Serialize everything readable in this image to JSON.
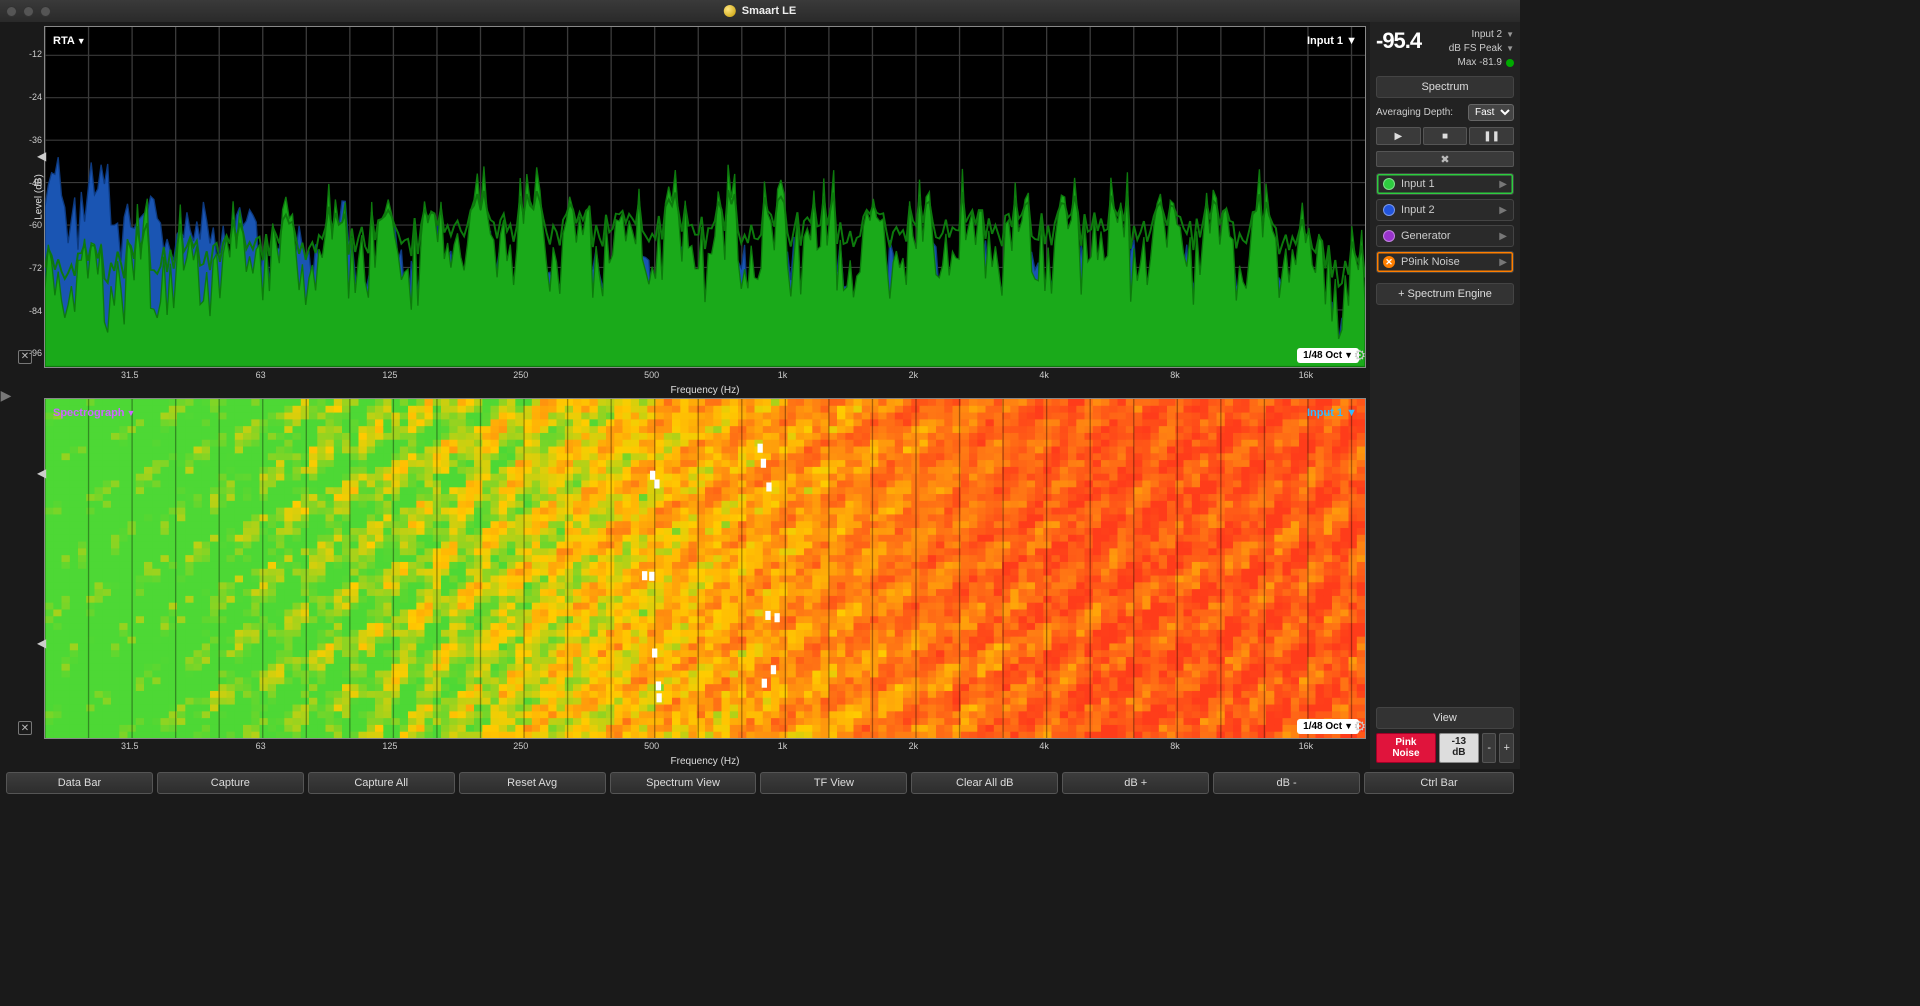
{
  "app": {
    "title": "Smaart LE"
  },
  "meter": {
    "value": "-95.4",
    "input_label": "Input 2",
    "mode_label": "dB FS Peak",
    "max_label": "Max -81.9"
  },
  "spectrum_panel": {
    "title": "Spectrum",
    "avg_label": "Averaging Depth:",
    "avg_value": "Fast",
    "add_engine_label": "+ Spectrum Engine"
  },
  "engines": [
    {
      "label": "Input 1",
      "color": "#2ecc40",
      "selected": "green",
      "icon": "dot"
    },
    {
      "label": "Input 2",
      "color": "#2255dd",
      "selected": "none",
      "icon": "dot"
    },
    {
      "label": "Generator",
      "color": "#9933cc",
      "selected": "none",
      "icon": "dot"
    },
    {
      "label": "P9ink Noise",
      "color": "#ff7f00",
      "selected": "orange",
      "icon": "x"
    }
  ],
  "view": {
    "view_label": "View",
    "pink_label": "Pink Noise",
    "db_readout": "-13 dB",
    "ctrl_bar_label": "Ctrl Bar"
  },
  "bottom_buttons": [
    "Data Bar",
    "Capture",
    "Capture All",
    "Reset Avg",
    "Spectrum View",
    "TF View",
    "Clear All dB",
    "dB +",
    "dB -"
  ],
  "rta": {
    "title": "RTA",
    "input_label": "Input 1",
    "oct_label": "1/48 Oct",
    "y_label": "Level (dB)",
    "x_label": "Frequency (Hz)",
    "y_ticks": [
      -12,
      -24,
      -36,
      -48,
      -60,
      -72,
      -84,
      -96
    ],
    "y_min": -100,
    "y_max": -4,
    "x_ticks_labels": [
      "31.5",
      "63",
      "125",
      "250",
      "500",
      "1k",
      "2k",
      "4k",
      "8k",
      "16k"
    ],
    "x_ticks_hz": [
      31.5,
      63,
      125,
      250,
      500,
      1000,
      2000,
      4000,
      8000,
      16000
    ],
    "x_min_hz": 20,
    "x_max_hz": 22000,
    "colors": {
      "bg": "#000000",
      "grid": "#3a3a3a",
      "green_fill": "#1aaa1a",
      "green_line": "#0d7a0d",
      "blue_fill": "#1a55b3",
      "blue_line": "#0d3a80"
    }
  },
  "spectro": {
    "title": "Spectrograph",
    "title_color": "#cc66ff",
    "input_label": "Input 1",
    "input_color": "#33bbff",
    "oct_label": "1/48 Oct",
    "x_label": "Frequency (Hz)",
    "colors": {
      "low": "#4dd835",
      "mid": "#ffcc00",
      "high": "#ff4d1a",
      "peak": "#ffffff"
    }
  }
}
